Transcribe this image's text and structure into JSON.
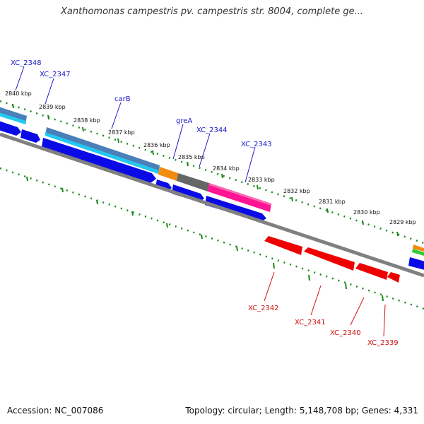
{
  "title": "Xanthomonas campestris pv. campestris str. 8004, complete ge...",
  "footer": {
    "accession": "Accession: NC_007086",
    "summary": "Topology: circular; Length: 5,148,708 bp; Genes: 4,331"
  },
  "scale_labels": [
    "2840 kbp",
    "2839 kbp",
    "2838 kbp",
    "2837 kbp",
    "2836 kbp",
    "2835 kbp",
    "2834 kbp",
    "2833 kbp",
    "2832 kbp",
    "2831 kbp",
    "2830 kbp",
    "2829 kbp"
  ],
  "genes_forward": [
    "XC_2348",
    "XC_2347",
    "carB",
    "greA",
    "XC_2344",
    "XC_2343"
  ],
  "genes_reverse": [
    "XC_2342",
    "XC_2341",
    "XC_2340",
    "XC_2339"
  ],
  "colors": {
    "forward_label": "#1a1acc",
    "reverse_label": "#d01010",
    "cds_blue": "#0a0ae6",
    "cds_red": "#ee0000",
    "backbone": "#808080",
    "tick": "#1a8a1a",
    "cyan": "#22c8f0",
    "orange": "#f08c10",
    "gray": "#666666",
    "pink": "#ff1493",
    "green": "#33cc33"
  }
}
